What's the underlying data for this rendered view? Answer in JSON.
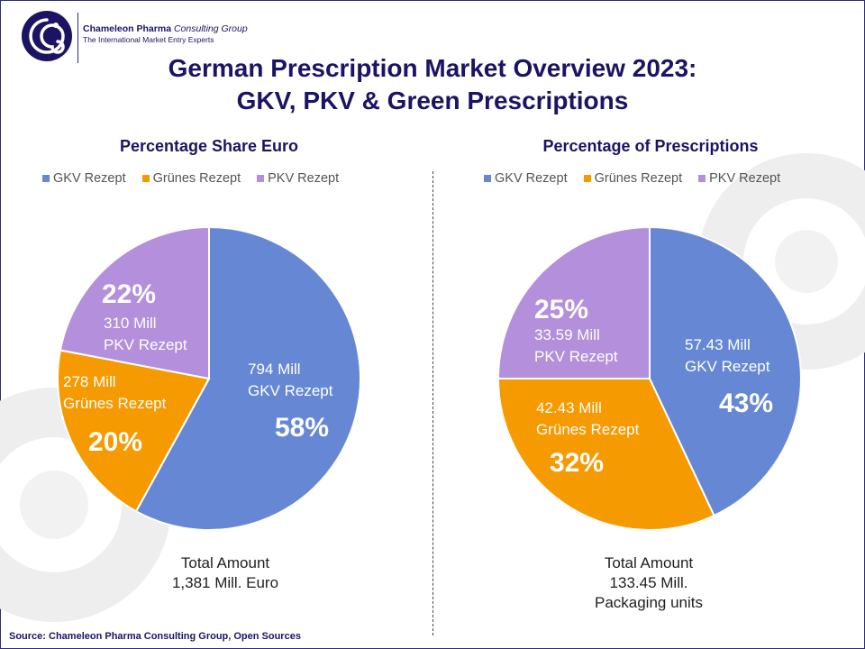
{
  "header": {
    "company_bold": "Chameleon Pharma",
    "company_italic": "Consulting Group",
    "tagline": "The International Market Entry Experts"
  },
  "title_line1": "German Prescription Market Overview 2023:",
  "title_line2": "GKV, PKV & Green Prescriptions",
  "colors": {
    "gkv": "#6688d4",
    "gruenes": "#f59a00",
    "pkv": "#b38fdc"
  },
  "chart_data": [
    {
      "type": "pie",
      "title": "Percentage Share Euro",
      "legend": [
        "GKV Rezept",
        "Grünes Rezept",
        "PKV Rezept"
      ],
      "slices": [
        {
          "name": "GKV Rezept",
          "percent": 58,
          "percent_label": "58%",
          "value_label": "794 Mill",
          "value": 794
        },
        {
          "name": "Grünes Rezept",
          "percent": 20,
          "percent_label": "20%",
          "value_label": "278 Mill",
          "value": 278
        },
        {
          "name": "PKV Rezept",
          "percent": 22,
          "percent_label": "22%",
          "value_label": "310 Mill",
          "value": 310
        }
      ],
      "total_line1": "Total Amount",
      "total_line2": "1,381 Mill. Euro",
      "total_line3": ""
    },
    {
      "type": "pie",
      "title": "Percentage of Prescriptions",
      "legend": [
        "GKV Rezept",
        "Grünes Rezept",
        "PKV Rezept"
      ],
      "slices": [
        {
          "name": "GKV Rezept",
          "percent": 43,
          "percent_label": "43%",
          "value_label": "57.43 Mill",
          "value": 57.43
        },
        {
          "name": "Grünes Rezept",
          "percent": 32,
          "percent_label": "32%",
          "value_label": "42.43 Mill",
          "value": 42.43
        },
        {
          "name": "PKV Rezept",
          "percent": 25,
          "percent_label": "25%",
          "value_label": "33.59 Mill",
          "value": 33.59
        }
      ],
      "total_line1": "Total Amount",
      "total_line2": "133.45 Mill.",
      "total_line3": "Packaging units"
    }
  ],
  "source": "Source: Chameleon Pharma Consulting Group, Open Sources"
}
